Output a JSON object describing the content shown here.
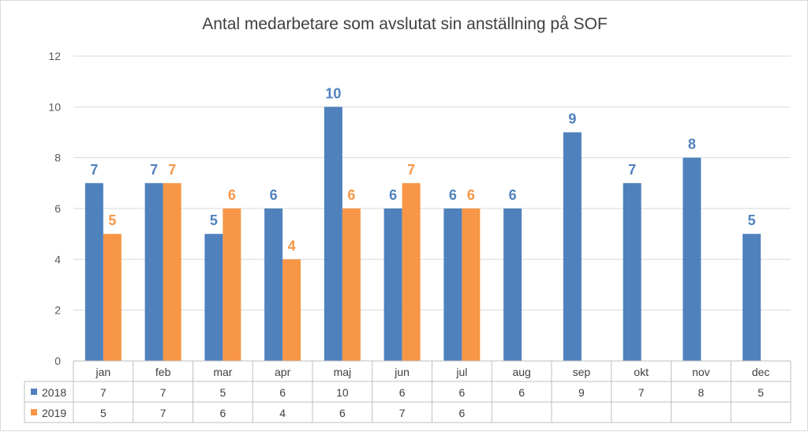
{
  "chart_data": {
    "type": "bar",
    "title": "Antal medarbetare som avslutat sin anställning på SOF",
    "categories": [
      "jan",
      "feb",
      "mar",
      "apr",
      "maj",
      "jun",
      "jul",
      "aug",
      "sep",
      "okt",
      "nov",
      "dec"
    ],
    "ylim": [
      0,
      12
    ],
    "yticks": [
      0,
      2,
      4,
      6,
      8,
      10,
      12
    ],
    "grid": true,
    "legend": "data-table",
    "series": [
      {
        "name": "2018",
        "color": "#4f81bd",
        "values": [
          7,
          7,
          5,
          6,
          10,
          6,
          6,
          6,
          9,
          7,
          8,
          5
        ]
      },
      {
        "name": "2019",
        "color": "#f79646",
        "values": [
          5,
          7,
          6,
          4,
          6,
          7,
          6,
          null,
          null,
          null,
          null,
          null
        ]
      }
    ]
  }
}
